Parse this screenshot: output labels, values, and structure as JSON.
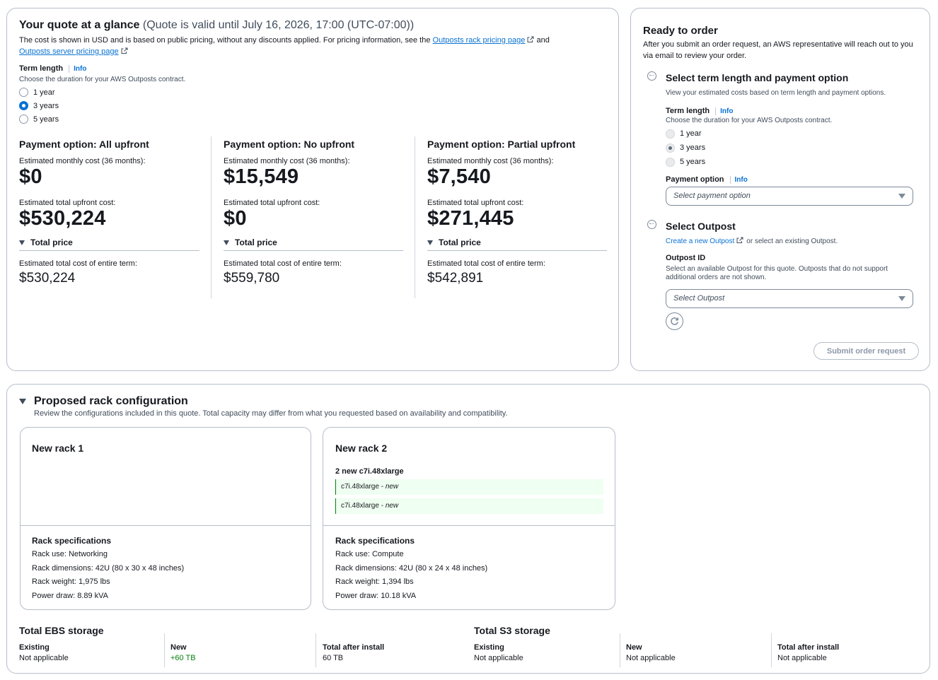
{
  "quote": {
    "title": "Your quote at a glance",
    "validity": "(Quote is valid until July 16, 2026, 17:00 (UTC-07:00))",
    "desc_prefix": "The cost is shown in USD and is based on public pricing, without any discounts applied. For pricing information, see the",
    "rack_pricing_link": "Outposts rack pricing page",
    "desc_and": "and",
    "server_pricing_link": "Outposts server pricing page",
    "term": {
      "label": "Term length",
      "info": "Info",
      "desc": "Choose the duration for your AWS Outposts contract.",
      "options": [
        "1 year",
        "3 years",
        "5 years"
      ],
      "selected": "3 years"
    },
    "payments": [
      {
        "title": "Payment option: All upfront",
        "monthly_label": "Estimated monthly cost (36 months):",
        "monthly": "$0",
        "upfront_label": "Estimated total upfront cost:",
        "upfront": "$530,224",
        "total_header": "Total price",
        "total_label": "Estimated total cost of entire term:",
        "total": "$530,224"
      },
      {
        "title": "Payment option: No upfront",
        "monthly_label": "Estimated monthly cost (36 months):",
        "monthly": "$15,549",
        "upfront_label": "Estimated total upfront cost:",
        "upfront": "$0",
        "total_header": "Total price",
        "total_label": "Estimated total cost of entire term:",
        "total": "$559,780"
      },
      {
        "title": "Payment option: Partial upfront",
        "monthly_label": "Estimated monthly cost (36 months):",
        "monthly": "$7,540",
        "upfront_label": "Estimated total upfront cost:",
        "upfront": "$271,445",
        "total_header": "Total price",
        "total_label": "Estimated total cost of entire term:",
        "total": "$542,891"
      }
    ]
  },
  "order": {
    "title": "Ready to order",
    "desc": "After you submit an order request, an AWS representative will reach out to you via email to review your order.",
    "step1": {
      "title": "Select term length and payment option",
      "desc": "View your estimated costs based on term length and payment options.",
      "term_label": "Term length",
      "term_info": "Info",
      "term_desc": "Choose the duration for your AWS Outposts contract.",
      "options": [
        "1 year",
        "3 years",
        "5 years"
      ],
      "selected": "3 years",
      "payment_label": "Payment option",
      "payment_info": "Info",
      "payment_placeholder": "Select payment option"
    },
    "step2": {
      "title": "Select Outpost",
      "create_link": "Create a new Outpost",
      "or_text": "or select an existing Outpost.",
      "outpost_label": "Outpost ID",
      "outpost_desc": "Select an available Outpost for this quote. Outposts that do not support additional orders are not shown.",
      "outpost_placeholder": "Select Outpost"
    },
    "submit_label": "Submit order request"
  },
  "racks": {
    "title": "Proposed rack configuration",
    "desc": "Review the configurations included in this quote. Total capacity may differ from what you requested based on availability and compatibility.",
    "items": [
      {
        "name": "New rack 1",
        "spec_title": "Rack specifications",
        "use": "Rack use: Networking",
        "dimensions": "Rack dimensions: 42U (80 x 30 x 48 inches)",
        "weight": "Rack weight: 1,975 lbs",
        "power": "Power draw: 8.89 kVA"
      },
      {
        "name": "New rack 2",
        "group_label": "2 new c7i.48xlarge",
        "instances": [
          {
            "type": "c7i.48xlarge",
            "status": "new"
          },
          {
            "type": "c7i.48xlarge",
            "status": "new"
          }
        ],
        "spec_title": "Rack specifications",
        "use": "Rack use: Compute",
        "dimensions": "Rack dimensions: 42U (80 x 24 x 48 inches)",
        "weight": "Rack weight: 1,394 lbs",
        "power": "Power draw: 10.18 kVA"
      }
    ]
  },
  "storage": {
    "ebs": {
      "title": "Total EBS storage",
      "existing_label": "Existing",
      "existing": "Not applicable",
      "new_label": "New",
      "new": "+60 TB",
      "after_label": "Total after install",
      "after": "60 TB"
    },
    "s3": {
      "title": "Total S3 storage",
      "existing_label": "Existing",
      "existing": "Not applicable",
      "new_label": "New",
      "new": "Not applicable",
      "after_label": "Total after install",
      "after": "Not applicable"
    }
  },
  "colors": {
    "accent": "#0972d3",
    "positive": "#037f0c",
    "border": "#b6bec9"
  }
}
